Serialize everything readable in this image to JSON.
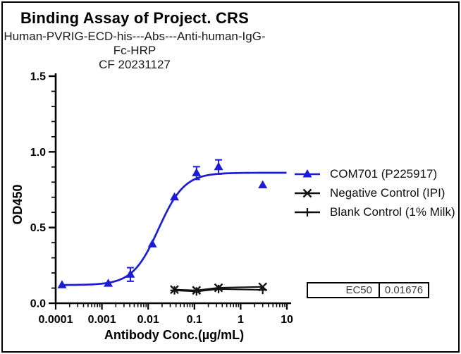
{
  "chart_data": {
    "type": "scatter",
    "title": "Binding Assay of Project. CRS",
    "subtitle": "Human-PVRIG-ECD-his---Abs---Anti-human-IgG-Fc-HRP",
    "annotation": "CF 20231127",
    "xlabel": "Antibody Conc.(µg/mL)",
    "ylabel": "OD450",
    "x_scale": "log",
    "xlim": [
      0.0001,
      10
    ],
    "ylim": [
      0.0,
      1.5
    ],
    "x_ticks": [
      0.0001,
      0.001,
      0.01,
      0.1,
      1,
      10
    ],
    "x_tick_labels": [
      "0.0001",
      "0.001",
      "0.01",
      "0.1",
      "1",
      "10"
    ],
    "y_ticks": [
      0.0,
      0.5,
      1.0,
      1.5
    ],
    "y_tick_labels": [
      "0.0",
      "0.5",
      "1.0",
      "1.5"
    ],
    "y_minor_step": 0.1,
    "grid": false,
    "legend_position": "right",
    "series": [
      {
        "name": "COM701 (P225917)",
        "color": "#1c1cd8",
        "marker": "triangle",
        "line": "sigmoid-fit",
        "x": [
          0.000137,
          0.00137,
          0.00412,
          0.0123,
          0.037,
          0.111,
          0.333,
          3
        ],
        "y": [
          0.12,
          0.13,
          0.19,
          0.39,
          0.7,
          0.86,
          0.9,
          0.78
        ],
        "yerr": [
          0,
          0,
          0.045,
          0,
          0,
          0.042,
          0.047,
          0
        ],
        "fit": {
          "type": "4PL",
          "bottom": 0.12,
          "top": 0.862,
          "ec50": 0.01676,
          "hill": 1.55
        }
      },
      {
        "name": "Negative Control (IPI)",
        "color": "#111111",
        "marker": "x",
        "line": "straight",
        "x": [
          0.037,
          0.111,
          0.333,
          3
        ],
        "y": [
          0.09,
          0.085,
          0.102,
          0.108
        ],
        "yerr": [
          0,
          0,
          0,
          0
        ]
      },
      {
        "name": "Blank Control (1% Milk)",
        "color": "#111111",
        "marker": "plus",
        "line": "straight",
        "x": [
          0.037,
          0.111,
          0.333,
          3
        ],
        "y": [
          0.085,
          0.078,
          0.094,
          0.088
        ],
        "yerr": [
          0,
          0,
          0,
          0
        ]
      }
    ]
  },
  "ec50_table": {
    "label": "EC50",
    "value": "0.01676"
  },
  "colors": {
    "accent_blue": "#1c1cd8",
    "black": "#111111"
  }
}
